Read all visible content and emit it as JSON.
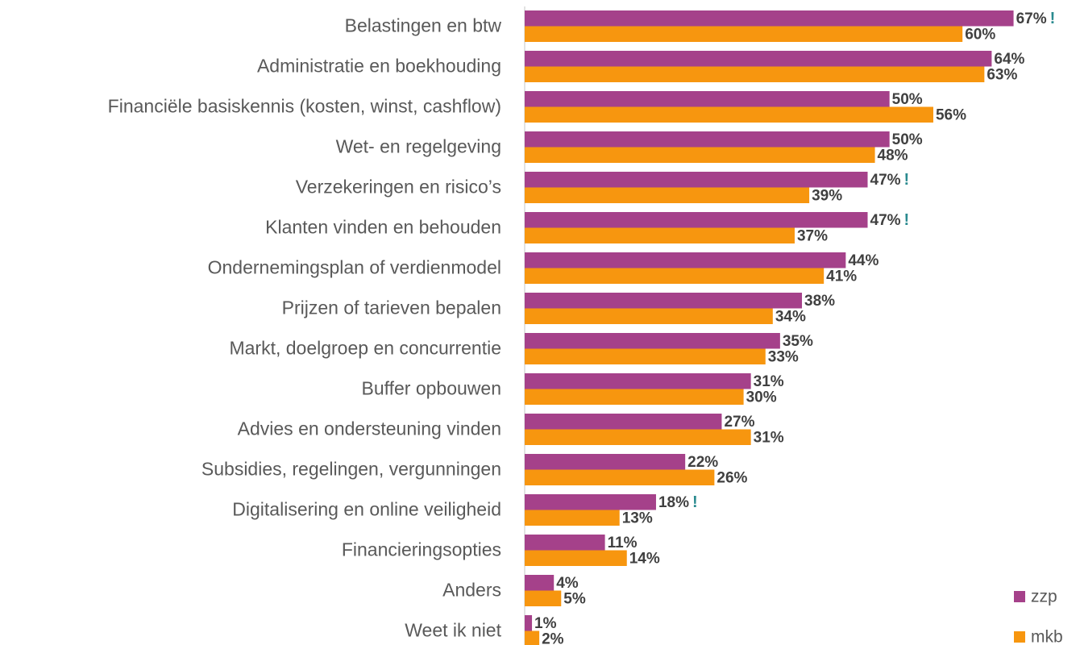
{
  "chart_data": {
    "type": "barh",
    "categories": [
      "Belastingen en btw",
      "Administratie en boekhouding",
      "Financiële basiskennis (kosten, winst, cashflow)",
      "Wet- en regelgeving",
      "Verzekeringen en risico’s",
      "Klanten vinden en behouden",
      "Ondernemingsplan of verdienmodel",
      "Prijzen of tarieven bepalen",
      "Markt, doelgroep en concurrentie",
      "Buffer opbouwen",
      "Advies en ondersteuning vinden",
      "Subsidies, regelingen, vergunningen",
      "Digitalisering en online veiligheid",
      "Financieringsopties",
      "Anders",
      "Weet ik niet"
    ],
    "series": [
      {
        "name": "zzp",
        "color": "#a5418a",
        "values": [
          67,
          64,
          50,
          50,
          47,
          47,
          44,
          38,
          35,
          31,
          27,
          22,
          18,
          11,
          4,
          1
        ],
        "value_labels": [
          "67%",
          "64%",
          "50%",
          "50%",
          "47%",
          "47%",
          "44%",
          "38%",
          "35%",
          "31%",
          "27%",
          "22%",
          "18%",
          "11%",
          "4%",
          "1%"
        ],
        "flags": [
          "!",
          null,
          null,
          null,
          "!",
          "!",
          null,
          null,
          null,
          null,
          null,
          null,
          "!",
          null,
          null,
          null
        ]
      },
      {
        "name": "mkb",
        "color": "#f7960f",
        "values": [
          60,
          63,
          56,
          48,
          39,
          37,
          41,
          34,
          33,
          30,
          31,
          26,
          13,
          14,
          5,
          2
        ],
        "value_labels": [
          "60%",
          "63%",
          "56%",
          "48%",
          "39%",
          "37%",
          "41%",
          "34%",
          "33%",
          "30%",
          "31%",
          "26%",
          "13%",
          "14%",
          "5%",
          "2%"
        ]
      }
    ],
    "xlim": [
      0,
      75
    ],
    "legend": "lower right"
  }
}
